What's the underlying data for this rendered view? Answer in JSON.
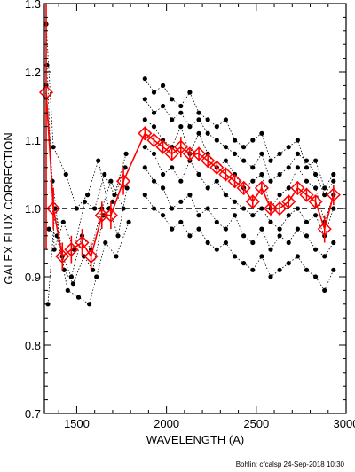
{
  "chart_data": {
    "type": "scatter",
    "title": "",
    "xlabel": "WAVELENGTH (A)",
    "ylabel": "GALEX FLUX CORRECTION",
    "xlim": [
      1320,
      3000
    ],
    "ylim": [
      0.7,
      1.3
    ],
    "xticks": [
      1500,
      2000,
      2500,
      3000
    ],
    "yticks": [
      0.7,
      0.8,
      0.9,
      1.0,
      1.1,
      1.2,
      1.3
    ],
    "x_tick_labels": [
      "1500",
      "2000",
      "2500",
      "3000"
    ],
    "y_tick_labels": [
      "0.7",
      "0.8",
      "0.9",
      "1.0",
      "1.1",
      "1.2",
      "1.3"
    ],
    "reference_line": {
      "y": 1.0,
      "style": "dashed"
    },
    "grid": false,
    "footer": "Bohlin: cfcalsp  24-Sep-2018 10:30",
    "colors": {
      "points": "#000000",
      "mean": "#ff0000"
    },
    "series": [
      {
        "points": [
          [
            1330,
            1.18
          ],
          [
            1365,
            1.04
          ],
          [
            1420,
            0.93
          ],
          [
            1470,
            0.9
          ],
          [
            1530,
            0.96
          ],
          [
            1580,
            0.94
          ],
          [
            1640,
            1.0
          ],
          [
            1690,
            1.04
          ],
          [
            1760,
            1.0
          ]
        ]
      },
      {
        "points": [
          [
            1340,
            0.86
          ],
          [
            1380,
            1.0
          ],
          [
            1430,
            0.91
          ],
          [
            1480,
            0.89
          ],
          [
            1540,
            0.93
          ],
          [
            1590,
            0.91
          ],
          [
            1650,
            0.99
          ],
          [
            1700,
            1.01
          ],
          [
            1770,
            1.06
          ]
        ]
      },
      {
        "points": [
          [
            1330,
            1.27
          ],
          [
            1370,
            1.09
          ],
          [
            1440,
            1.05
          ],
          [
            1500,
            1.0
          ],
          [
            1560,
            1.02
          ],
          [
            1620,
            1.07
          ],
          [
            1680,
            1.0
          ],
          [
            1730,
            0.96
          ],
          [
            1780,
            1.03
          ]
        ]
      },
      {
        "points": [
          [
            1345,
            0.97
          ],
          [
            1390,
            0.96
          ],
          [
            1450,
            0.88
          ],
          [
            1510,
            0.87
          ],
          [
            1570,
            0.86
          ],
          [
            1610,
            0.9
          ],
          [
            1660,
            0.95
          ],
          [
            1720,
            0.93
          ],
          [
            1790,
            0.98
          ]
        ]
      },
      {
        "points": [
          [
            1335,
            1.21
          ],
          [
            1375,
            0.94
          ],
          [
            1425,
            0.98
          ],
          [
            1485,
            0.94
          ],
          [
            1545,
            1.01
          ],
          [
            1600,
            1.0
          ],
          [
            1655,
            1.05
          ],
          [
            1710,
            1.02
          ],
          [
            1775,
            1.08
          ]
        ]
      },
      {
        "points": [
          [
            1880,
            1.13
          ],
          [
            1930,
            1.12
          ],
          [
            1980,
            1.1
          ],
          [
            2030,
            1.09
          ],
          [
            2080,
            1.12
          ],
          [
            2130,
            1.08
          ],
          [
            2180,
            1.11
          ],
          [
            2230,
            1.08
          ],
          [
            2280,
            1.06
          ],
          [
            2330,
            1.07
          ],
          [
            2380,
            1.05
          ],
          [
            2430,
            1.03
          ],
          [
            2480,
            1.04
          ],
          [
            2530,
            1.05
          ],
          [
            2580,
            1.0
          ],
          [
            2630,
            1.02
          ],
          [
            2680,
            1.03
          ],
          [
            2730,
            1.06
          ],
          [
            2780,
            1.04
          ],
          [
            2830,
            1.03
          ],
          [
            2880,
            0.98
          ],
          [
            2930,
            1.02
          ]
        ]
      },
      {
        "points": [
          [
            1880,
            1.09
          ],
          [
            1930,
            1.08
          ],
          [
            1980,
            1.05
          ],
          [
            2030,
            1.06
          ],
          [
            2080,
            1.04
          ],
          [
            2130,
            1.07
          ],
          [
            2180,
            1.05
          ],
          [
            2230,
            1.03
          ],
          [
            2280,
            1.04
          ],
          [
            2330,
            1.02
          ],
          [
            2380,
            1.01
          ],
          [
            2430,
            1.0
          ],
          [
            2480,
            0.99
          ],
          [
            2530,
            1.0
          ],
          [
            2580,
            0.98
          ],
          [
            2630,
            0.97
          ],
          [
            2680,
            0.99
          ],
          [
            2730,
            1.0
          ],
          [
            2780,
            0.98
          ],
          [
            2830,
            0.99
          ],
          [
            2880,
            0.96
          ],
          [
            2930,
            1.0
          ]
        ]
      },
      {
        "points": [
          [
            1880,
            1.16
          ],
          [
            1930,
            1.14
          ],
          [
            1980,
            1.15
          ],
          [
            2030,
            1.13
          ],
          [
            2080,
            1.14
          ],
          [
            2130,
            1.12
          ],
          [
            2180,
            1.13
          ],
          [
            2230,
            1.11
          ],
          [
            2280,
            1.1
          ],
          [
            2330,
            1.09
          ],
          [
            2380,
            1.08
          ],
          [
            2430,
            1.07
          ],
          [
            2480,
            1.06
          ],
          [
            2530,
            1.08
          ],
          [
            2580,
            1.04
          ],
          [
            2630,
            1.05
          ],
          [
            2680,
            1.06
          ],
          [
            2730,
            1.08
          ],
          [
            2780,
            1.07
          ],
          [
            2830,
            1.05
          ],
          [
            2880,
            1.02
          ],
          [
            2930,
            1.04
          ]
        ]
      },
      {
        "points": [
          [
            1880,
            1.06
          ],
          [
            1930,
            1.04
          ],
          [
            1980,
            1.03
          ],
          [
            2030,
            1.0
          ],
          [
            2080,
            1.01
          ],
          [
            2130,
            1.02
          ],
          [
            2180,
            0.99
          ],
          [
            2230,
            1.0
          ],
          [
            2280,
            0.98
          ],
          [
            2330,
            0.97
          ],
          [
            2380,
            0.99
          ],
          [
            2430,
            0.96
          ],
          [
            2480,
            0.95
          ],
          [
            2530,
            0.97
          ],
          [
            2580,
            0.94
          ],
          [
            2630,
            0.96
          ],
          [
            2680,
            0.95
          ],
          [
            2730,
            0.97
          ],
          [
            2780,
            0.96
          ],
          [
            2830,
            0.94
          ],
          [
            2880,
            0.93
          ],
          [
            2930,
            0.95
          ]
        ]
      },
      {
        "points": [
          [
            1880,
            1.19
          ],
          [
            1930,
            1.17
          ],
          [
            1980,
            1.18
          ],
          [
            2030,
            1.16
          ],
          [
            2080,
            1.15
          ],
          [
            2130,
            1.17
          ],
          [
            2180,
            1.14
          ],
          [
            2230,
            1.13
          ],
          [
            2280,
            1.12
          ],
          [
            2330,
            1.13
          ],
          [
            2380,
            1.1
          ],
          [
            2430,
            1.09
          ],
          [
            2480,
            1.1
          ],
          [
            2530,
            1.11
          ],
          [
            2580,
            1.07
          ],
          [
            2630,
            1.08
          ],
          [
            2680,
            1.09
          ],
          [
            2730,
            1.1
          ],
          [
            2780,
            1.06
          ],
          [
            2830,
            1.07
          ],
          [
            2880,
            1.03
          ],
          [
            2930,
            1.05
          ]
        ]
      },
      {
        "points": [
          [
            1880,
            1.02
          ],
          [
            1930,
            1.0
          ],
          [
            1980,
            0.99
          ],
          [
            2030,
            0.97
          ],
          [
            2080,
            0.98
          ],
          [
            2130,
            0.96
          ],
          [
            2180,
            0.97
          ],
          [
            2230,
            0.95
          ],
          [
            2280,
            0.94
          ],
          [
            2330,
            0.95
          ],
          [
            2380,
            0.93
          ],
          [
            2430,
            0.92
          ],
          [
            2480,
            0.91
          ],
          [
            2530,
            0.93
          ],
          [
            2580,
            0.9
          ],
          [
            2630,
            0.91
          ],
          [
            2680,
            0.92
          ],
          [
            2730,
            0.93
          ],
          [
            2780,
            0.91
          ],
          [
            2830,
            0.9
          ],
          [
            2880,
            0.88
          ],
          [
            2930,
            0.91
          ]
        ]
      }
    ],
    "mean": {
      "x": [
        1330,
        1370,
        1420,
        1470,
        1530,
        1580,
        1640,
        1690,
        1760,
        1880,
        1930,
        1980,
        2030,
        2080,
        2130,
        2180,
        2230,
        2280,
        2330,
        2380,
        2430,
        2480,
        2530,
        2580,
        2630,
        2680,
        2730,
        2780,
        2830,
        2880,
        2930
      ],
      "y": [
        1.17,
        1.0,
        0.93,
        0.94,
        0.95,
        0.93,
        0.99,
        0.99,
        1.04,
        1.11,
        1.1,
        1.09,
        1.08,
        1.09,
        1.08,
        1.08,
        1.07,
        1.06,
        1.05,
        1.04,
        1.03,
        1.01,
        1.03,
        1.0,
        1.0,
        1.01,
        1.03,
        1.02,
        1.01,
        0.97,
        1.02
      ],
      "err": [
        0.23,
        0.03,
        0.02,
        0.02,
        0.02,
        0.02,
        0.02,
        0.02,
        0.02,
        0.01,
        0.01,
        0.01,
        0.01,
        0.015,
        0.01,
        0.01,
        0.01,
        0.01,
        0.01,
        0.01,
        0.01,
        0.01,
        0.01,
        0.01,
        0.01,
        0.01,
        0.01,
        0.01,
        0.01,
        0.02,
        0.015
      ]
    }
  }
}
